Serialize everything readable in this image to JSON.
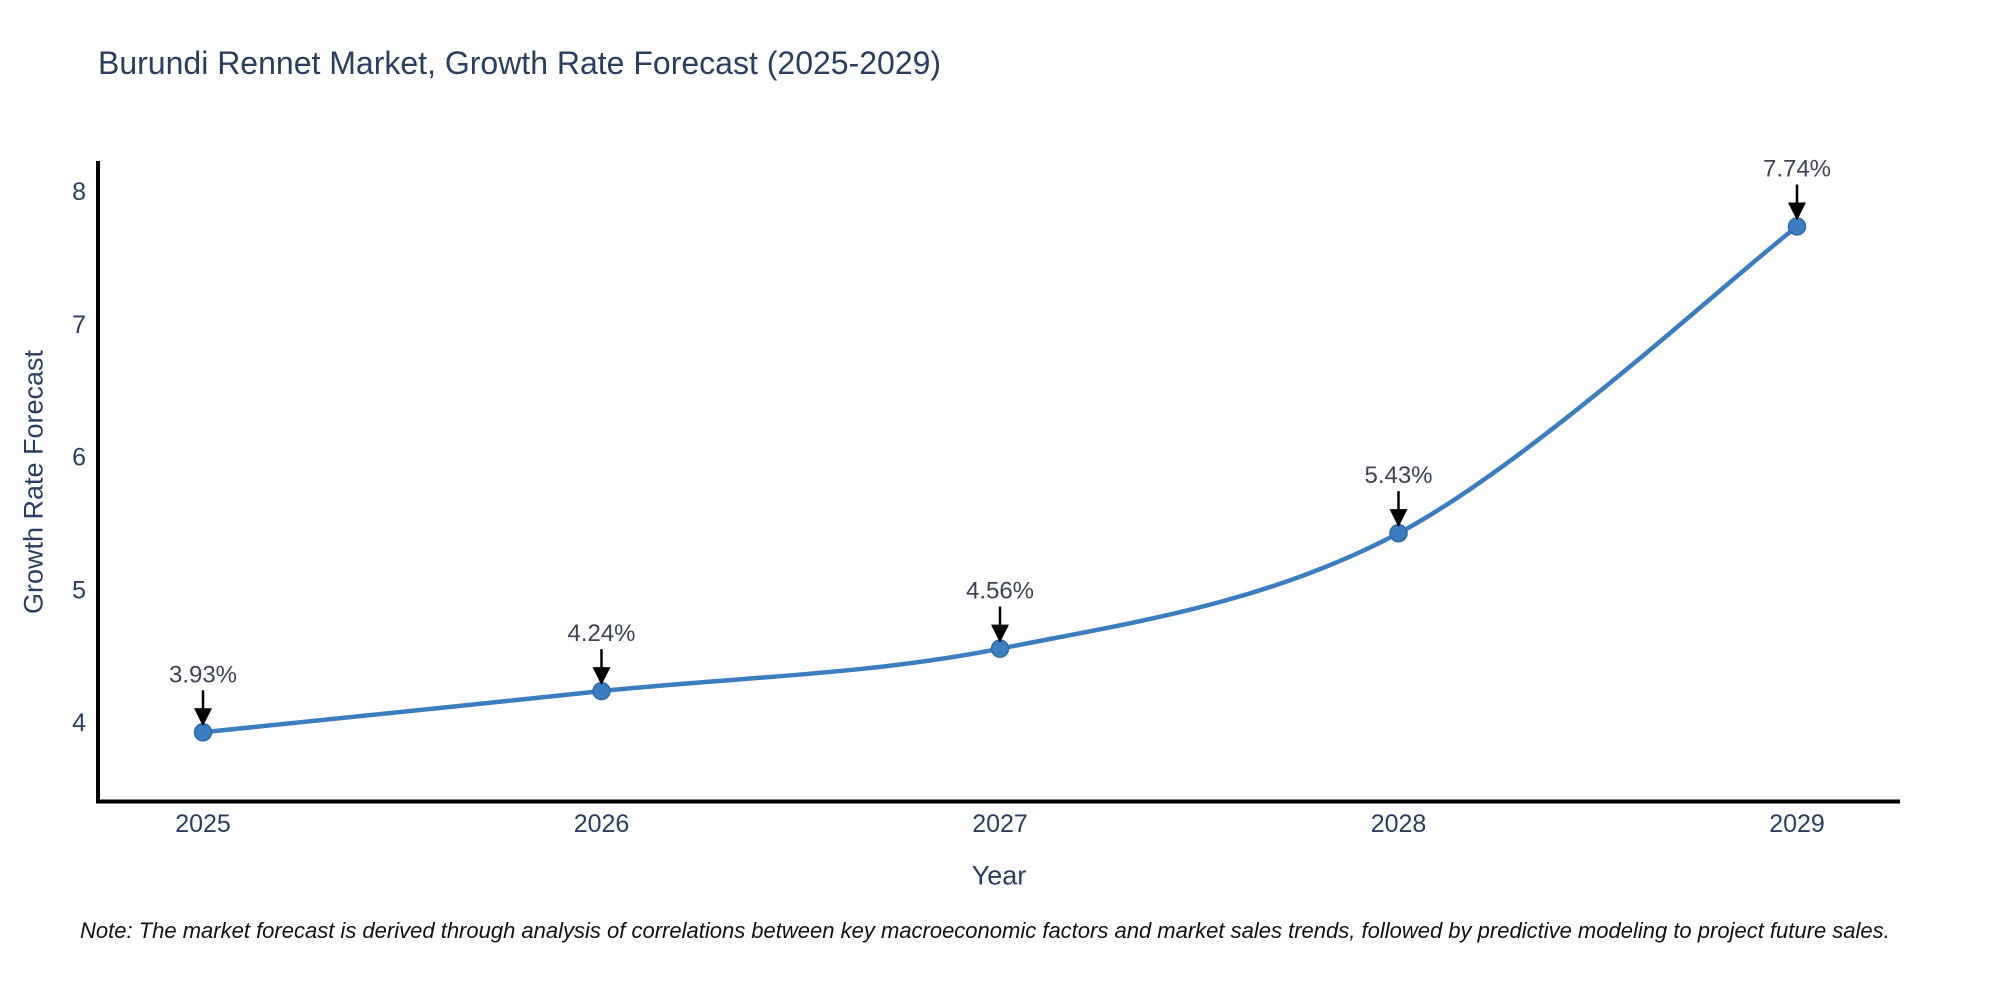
{
  "note": "Note: The market forecast is derived through analysis of correlations between key macroeconomic factors and market sales trends, followed by predictive modeling to project future sales.",
  "chart_data": {
    "type": "line",
    "title": "Burundi Rennet Market, Growth Rate Forecast (2025-2029)",
    "xlabel": "Year",
    "ylabel": "Growth Rate Forecast",
    "x": [
      2025,
      2026,
      2027,
      2028,
      2029
    ],
    "series": [
      {
        "name": "Growth Rate Forecast",
        "values": [
          3.93,
          4.24,
          4.56,
          5.43,
          7.74
        ],
        "point_labels": [
          "3.93%",
          "4.24%",
          "4.56%",
          "5.43%",
          "7.74%"
        ]
      }
    ],
    "x_tick_labels": [
      "2025",
      "2026",
      "2027",
      "2028",
      "2029"
    ],
    "y_tick_values": [
      4,
      5,
      6,
      7,
      8
    ],
    "y_tick_labels": [
      "4",
      "5",
      "6",
      "7",
      "8"
    ],
    "ylim": [
      3.42,
      8.23
    ],
    "line_shape": "spline",
    "markers": true,
    "grid": false,
    "legend_position": "none",
    "annotations_have_arrows": true,
    "colors": {
      "line": "#3c7dbf",
      "marker": "#3c7dbf",
      "marker_edge": "#2f6aa6",
      "axis_line": "#000000",
      "chart_text": "#2a3f5f",
      "annotation_text": "#3d4451",
      "arrow": "#000000",
      "note_text": "#111111",
      "background": "#ffffff"
    }
  }
}
